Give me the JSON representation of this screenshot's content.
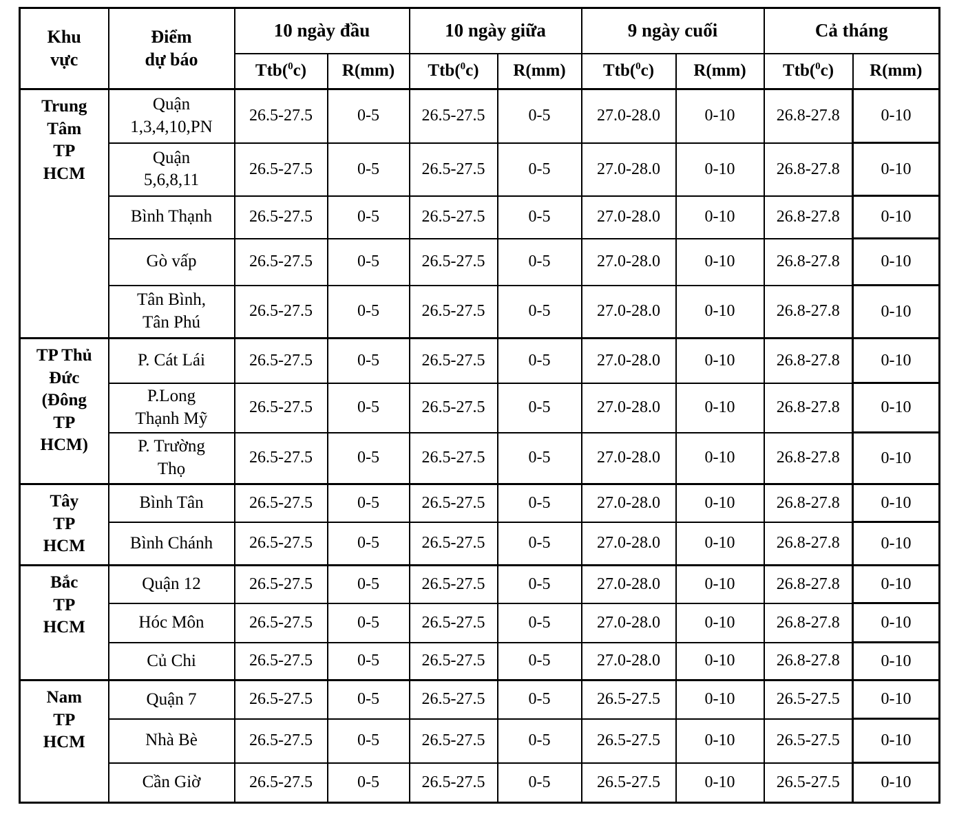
{
  "colors": {
    "background": "#ffffff",
    "border": "#000000",
    "text": "#000000"
  },
  "table": {
    "header": {
      "col1": "Khu\nvực",
      "col2": "Điểm\ndự báo",
      "groups": [
        "10 ngày đầu",
        "10 ngày giữa",
        "9 ngày cuối",
        "Cả tháng"
      ],
      "sub_temp": {
        "prefix": "Ttb(",
        "sup": "0",
        "suffix": "c)"
      },
      "sub_rain": "R(mm)"
    },
    "sections": [
      {
        "region": "Trung\nTâm\nTP\nHCM",
        "rows": [
          {
            "point": "Quận\n1,3,4,10,PN",
            "values": [
              "26.5-27.5",
              "0-5",
              "26.5-27.5",
              "0-5",
              "27.0-28.0",
              "0-10",
              "26.8-27.8",
              "0-10"
            ]
          },
          {
            "point": "Quận\n5,6,8,11",
            "values": [
              "26.5-27.5",
              "0-5",
              "26.5-27.5",
              "0-5",
              "27.0-28.0",
              "0-10",
              "26.8-27.8",
              "0-10"
            ]
          },
          {
            "point": "Bình Thạnh",
            "values": [
              "26.5-27.5",
              "0-5",
              "26.5-27.5",
              "0-5",
              "27.0-28.0",
              "0-10",
              "26.8-27.8",
              "0-10"
            ]
          },
          {
            "point": "Gò vấp",
            "values": [
              "26.5-27.5",
              "0-5",
              "26.5-27.5",
              "0-5",
              "27.0-28.0",
              "0-10",
              "26.8-27.8",
              "0-10"
            ]
          },
          {
            "point": "Tân Bình,\nTân Phú",
            "values": [
              "26.5-27.5",
              "0-5",
              "26.5-27.5",
              "0-5",
              "27.0-28.0",
              "0-10",
              "26.8-27.8",
              "0-10"
            ]
          }
        ]
      },
      {
        "region": "TP Thủ\nĐức\n(Đông\nTP\nHCM)",
        "rows": [
          {
            "point": "P. Cát Lái",
            "values": [
              "26.5-27.5",
              "0-5",
              "26.5-27.5",
              "0-5",
              "27.0-28.0",
              "0-10",
              "26.8-27.8",
              "0-10"
            ]
          },
          {
            "point": "P.Long\nThạnh Mỹ",
            "values": [
              "26.5-27.5",
              "0-5",
              "26.5-27.5",
              "0-5",
              "27.0-28.0",
              "0-10",
              "26.8-27.8",
              "0-10"
            ]
          },
          {
            "point": "P. Trường\nThọ",
            "values": [
              "26.5-27.5",
              "0-5",
              "26.5-27.5",
              "0-5",
              "27.0-28.0",
              "0-10",
              "26.8-27.8",
              "0-10"
            ]
          }
        ]
      },
      {
        "region": "Tây\nTP\nHCM",
        "rows": [
          {
            "point": "Bình Tân",
            "values": [
              "26.5-27.5",
              "0-5",
              "26.5-27.5",
              "0-5",
              "27.0-28.0",
              "0-10",
              "26.8-27.8",
              "0-10"
            ]
          },
          {
            "point": "Bình Chánh",
            "values": [
              "26.5-27.5",
              "0-5",
              "26.5-27.5",
              "0-5",
              "27.0-28.0",
              "0-10",
              "26.8-27.8",
              "0-10"
            ]
          }
        ]
      },
      {
        "region": "Bắc\nTP\nHCM",
        "rows": [
          {
            "point": "Quận 12",
            "values": [
              "26.5-27.5",
              "0-5",
              "26.5-27.5",
              "0-5",
              "27.0-28.0",
              "0-10",
              "26.8-27.8",
              "0-10"
            ]
          },
          {
            "point": "Hóc Môn",
            "values": [
              "26.5-27.5",
              "0-5",
              "26.5-27.5",
              "0-5",
              "27.0-28.0",
              "0-10",
              "26.8-27.8",
              "0-10"
            ]
          },
          {
            "point": "Củ Chi",
            "values": [
              "26.5-27.5",
              "0-5",
              "26.5-27.5",
              "0-5",
              "27.0-28.0",
              "0-10",
              "26.8-27.8",
              "0-10"
            ]
          }
        ]
      },
      {
        "region": "Nam\nTP\nHCM",
        "rows": [
          {
            "point": "Quận 7",
            "values": [
              "26.5-27.5",
              "0-5",
              "26.5-27.5",
              "0-5",
              "26.5-27.5",
              "0-10",
              "26.5-27.5",
              "0-10"
            ]
          },
          {
            "point": "Nhà Bè",
            "values": [
              "26.5-27.5",
              "0-5",
              "26.5-27.5",
              "0-5",
              "26.5-27.5",
              "0-10",
              "26.5-27.5",
              "0-10"
            ]
          },
          {
            "point": "Cần Giờ",
            "values": [
              "26.5-27.5",
              "0-5",
              "26.5-27.5",
              "0-5",
              "26.5-27.5",
              "0-10",
              "26.5-27.5",
              "0-10"
            ]
          }
        ]
      }
    ]
  }
}
